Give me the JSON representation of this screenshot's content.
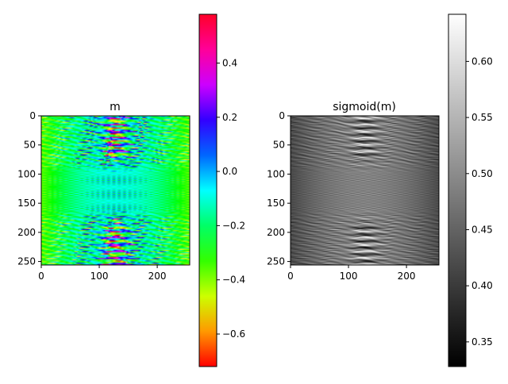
{
  "chart_data": [
    {
      "type": "heatmap",
      "title": "m",
      "colormap": "gist_rainbow (hsv-like: red-yellow-green-cyan-blue-magenta-red)",
      "x_ticks": [
        0,
        100,
        200
      ],
      "y_ticks": [
        0,
        50,
        100,
        150,
        200,
        250
      ],
      "xlim": [
        0,
        256
      ],
      "ylim": [
        256,
        0
      ],
      "colorbar": {
        "range": [
          -0.72,
          0.58
        ],
        "ticks": [
          "0.4",
          "0.2",
          "0.0",
          "−0.2",
          "−0.4",
          "−0.6"
        ],
        "tick_values": [
          0.4,
          0.2,
          0.0,
          -0.2,
          -0.4,
          -0.6
        ]
      },
      "pattern": "symmetric stripe artifact pattern; blue/cyan low-amplitude center band (rows ~95-165), green edges, alternating magenta/yellow/blue stripes above and below, bright blobs near columns 100-160"
    },
    {
      "type": "heatmap",
      "title": "sigmoid(m)",
      "colormap": "gray",
      "x_ticks": [
        0,
        100,
        200
      ],
      "y_ticks": [
        0,
        50,
        100,
        150,
        200,
        250
      ],
      "xlim": [
        0,
        256
      ],
      "ylim": [
        256,
        0
      ],
      "colorbar": {
        "range": [
          0.328,
          0.642
        ],
        "ticks": [
          "0.60",
          "0.55",
          "0.50",
          "0.45",
          "0.40",
          "0.35"
        ],
        "tick_values": [
          0.6,
          0.55,
          0.5,
          0.45,
          0.4,
          0.35
        ]
      },
      "pattern": "sigmoid of left panel: mid-gray center band, dark/bright stripes above and below, white and black blobs near columns 100-160"
    }
  ]
}
